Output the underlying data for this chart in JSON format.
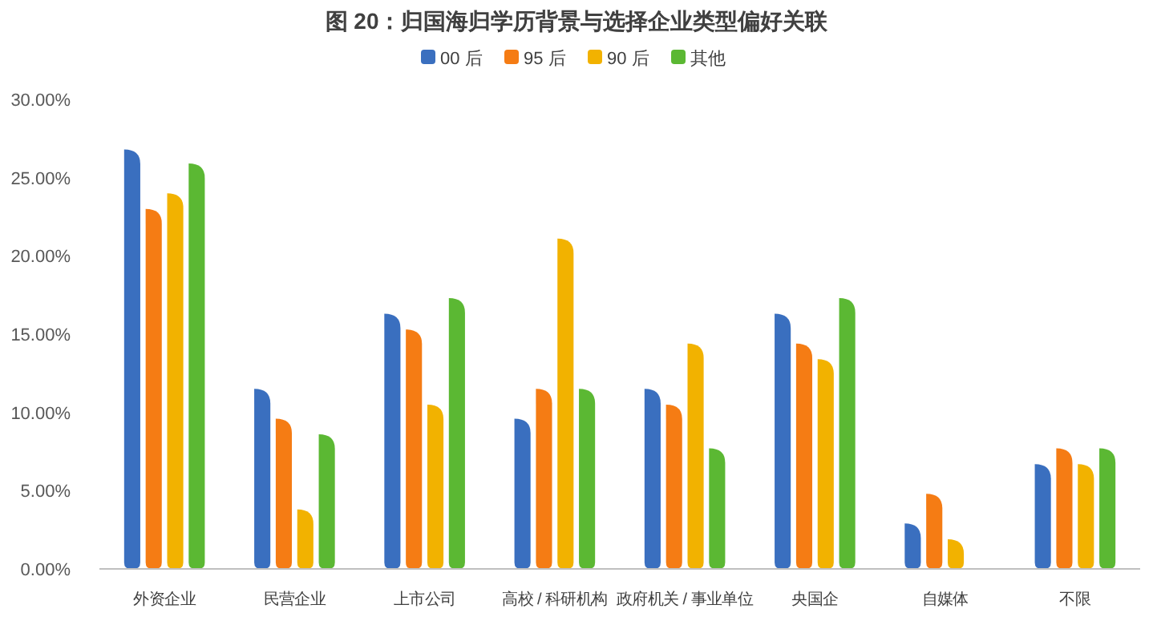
{
  "chart_data": {
    "type": "bar",
    "title": "图 20：归国海归学历背景与选择企业类型偏好关联",
    "categories": [
      "外资企业",
      "民营企业",
      "上市公司",
      "高校 / 科研机构",
      "政府机关 / 事业单位",
      "央国企",
      "自媒体",
      "不限"
    ],
    "series": [
      {
        "name": "00 后",
        "color": "#3a6fbf",
        "values": [
          26.8,
          11.5,
          16.3,
          9.6,
          11.5,
          16.3,
          2.9,
          6.7
        ]
      },
      {
        "name": "95 后",
        "color": "#f57c14",
        "values": [
          23.0,
          9.6,
          15.3,
          11.5,
          10.5,
          14.4,
          4.8,
          7.7
        ]
      },
      {
        "name": "90 后",
        "color": "#f2b200",
        "values": [
          24.0,
          3.8,
          10.5,
          21.1,
          14.4,
          13.4,
          1.9,
          6.7
        ]
      },
      {
        "name": "其他",
        "color": "#5bb833",
        "values": [
          25.9,
          8.6,
          17.3,
          11.5,
          7.7,
          17.3,
          null,
          7.7
        ]
      }
    ],
    "ylim": [
      0,
      30
    ],
    "yticks": [
      {
        "value": 0,
        "label": "0.00%"
      },
      {
        "value": 5,
        "label": "5.00%"
      },
      {
        "value": 10,
        "label": "10.00%"
      },
      {
        "value": 15,
        "label": "15.00%"
      },
      {
        "value": 20,
        "label": "20.00%"
      },
      {
        "value": 25,
        "label": "25.00%"
      },
      {
        "value": 30,
        "label": "30.00%"
      }
    ],
    "legend": "top",
    "grid": false
  }
}
